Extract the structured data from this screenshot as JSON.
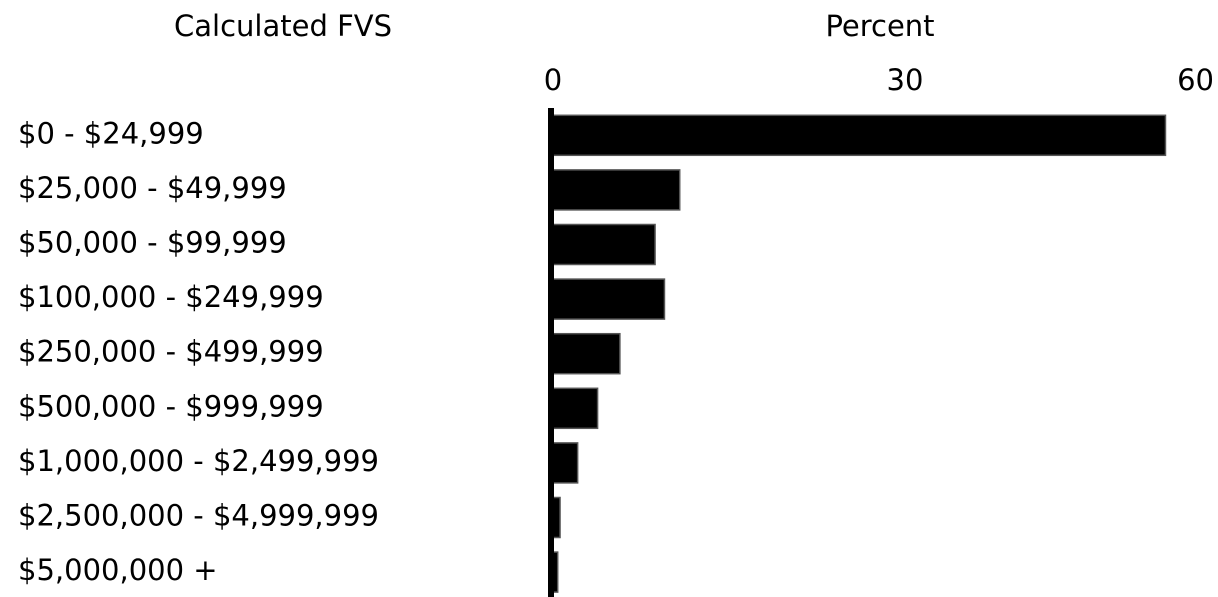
{
  "chart_data": {
    "type": "bar",
    "orientation": "horizontal",
    "title": "Calculated FVS",
    "xlabel": "Percent",
    "categories": [
      "$0 - $24,999",
      "$25,000 - $49,999",
      "$50,000 - $99,999",
      "$100,000 - $249,999",
      "$250,000 - $499,999",
      "$500,000 - $999,999",
      "$1,000,000 - $2,499,999",
      "$2,500,000 - $4,999,999",
      "$5,000,000 +"
    ],
    "values": [
      52.2,
      10.8,
      8.7,
      9.5,
      5.7,
      3.8,
      2.1,
      0.6,
      0.4
    ],
    "color": "#000000",
    "xlim": [
      0,
      60
    ],
    "xticks": [
      0,
      30,
      60
    ],
    "grid": false
  }
}
